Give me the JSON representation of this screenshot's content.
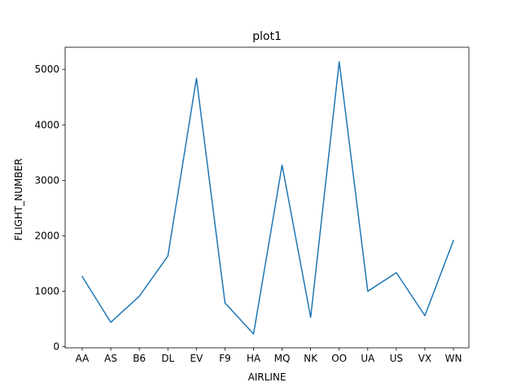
{
  "chart_data": {
    "type": "line",
    "title": "plot1",
    "xlabel": "AIRLINE",
    "ylabel": "FLIGHT_NUMBER",
    "categories": [
      "AA",
      "AS",
      "B6",
      "DL",
      "EV",
      "F9",
      "HA",
      "MQ",
      "NK",
      "OO",
      "UA",
      "US",
      "VX",
      "WN"
    ],
    "values": [
      1265,
      440,
      910,
      1635,
      4840,
      790,
      230,
      3275,
      530,
      5140,
      1000,
      1335,
      560,
      1915
    ],
    "ylim": [
      -20,
      5400
    ],
    "yticks": [
      0,
      1000,
      2000,
      3000,
      4000,
      5000
    ],
    "grid": false,
    "line_color": "#1f77b4"
  }
}
